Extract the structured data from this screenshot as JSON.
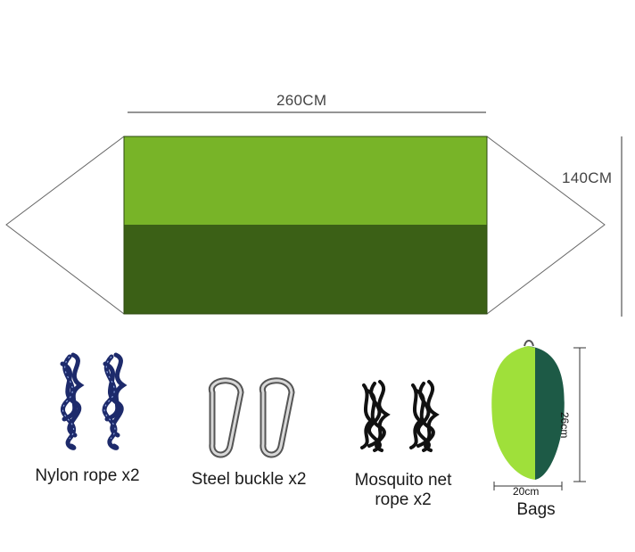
{
  "dimensions": {
    "width_label": "260CM",
    "height_label": "140CM",
    "bag_height_label": "26cm",
    "bag_width_label": "20cm"
  },
  "accessories": [
    {
      "label": "Nylon rope x2"
    },
    {
      "label": "Steel buckle x2"
    },
    {
      "label": "Mosquito net\nrope x2"
    },
    {
      "label": "Bags"
    }
  ],
  "colors": {
    "light_green": "#78b428",
    "dark_green": "#3b6016",
    "navy_rope": "#1d2a6b",
    "bag_lime": "#9fe03a",
    "bag_teal": "#1d5a46"
  }
}
